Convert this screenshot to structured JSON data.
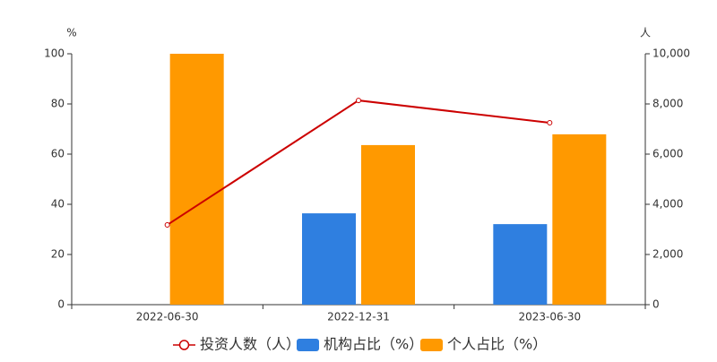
{
  "chart_data": {
    "type": "bar",
    "y_unit": "%",
    "y2_unit": "人",
    "categories": [
      "2022-06-30",
      "2022-12-31",
      "2023-06-30"
    ],
    "series": [
      {
        "name": "投资人数（人）",
        "type": "line",
        "axis": "y2",
        "color": "#cc0000",
        "values": [
          3180,
          8140,
          7250
        ]
      },
      {
        "name": "机构占比（%）",
        "type": "bar",
        "color": "#2f7fe0",
        "values": [
          0,
          36.4,
          32.1
        ]
      },
      {
        "name": "个人占比（%）",
        "type": "bar",
        "color": "#ff9900",
        "values": [
          100,
          63.6,
          67.9
        ]
      }
    ],
    "ylim": [
      0,
      100
    ],
    "yticks": [
      0,
      20,
      40,
      60,
      80,
      100
    ],
    "y2lim": [
      0,
      10000
    ],
    "y2ticks": [
      0,
      {
        "value": 2000,
        "label": "2,000"
      },
      {
        "value": 4000,
        "label": "4,000"
      },
      {
        "value": 6000,
        "label": "6,000"
      },
      {
        "value": 8000,
        "label": "8,000"
      },
      {
        "value": 10000,
        "label": "10,000"
      }
    ],
    "grid": false
  }
}
